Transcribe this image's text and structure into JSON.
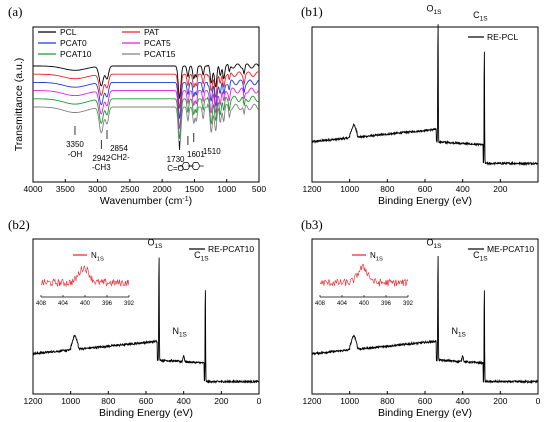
{
  "figure": {
    "chart_data": [
      {
        "panel_label": "(a)",
        "type": "line",
        "xlabel": "Wavenumber (cm",
        "xlabel_sup": "-1",
        "xlabel_end": ")",
        "ylabel": "Transmittance (a.u.)",
        "xlim": [
          4000,
          500
        ],
        "xticks": [
          "4000",
          "3500",
          "3000",
          "2500",
          "2000",
          "1500",
          "1000",
          "500"
        ],
        "legend_position": "top-left",
        "legend_columns": 2,
        "series": [
          {
            "name": "PCL",
            "color": "#000000",
            "offset": 0
          },
          {
            "name": "PAT",
            "color": "#e8202a",
            "offset": 1
          },
          {
            "name": "PCAT0",
            "color": "#1f3bd6",
            "offset": 2
          },
          {
            "name": "PCAT5",
            "color": "#e020d8",
            "offset": 3
          },
          {
            "name": "PCAT10",
            "color": "#1a9a2a",
            "offset": 4
          },
          {
            "name": "PCAT15",
            "color": "#808080",
            "offset": 5
          }
        ],
        "peaks": [
          {
            "x": 3350,
            "depth": 0.12,
            "width": 250
          },
          {
            "x": 2942,
            "depth": 0.55,
            "width": 45
          },
          {
            "x": 2854,
            "depth": 0.35,
            "width": 35
          },
          {
            "x": 1730,
            "depth": 0.9,
            "width": 28
          },
          {
            "x": 1601,
            "depth": 0.3,
            "width": 20
          },
          {
            "x": 1510,
            "depth": 0.35,
            "width": 22
          },
          {
            "x": 1470,
            "depth": 0.3,
            "width": 18
          },
          {
            "x": 1365,
            "depth": 0.25,
            "width": 18
          },
          {
            "x": 1240,
            "depth": 0.5,
            "width": 25
          },
          {
            "x": 1170,
            "depth": 0.55,
            "width": 25
          },
          {
            "x": 1100,
            "depth": 0.3,
            "width": 20
          },
          {
            "x": 1045,
            "depth": 0.3,
            "width": 18
          },
          {
            "x": 960,
            "depth": 0.2,
            "width": 15
          },
          {
            "x": 730,
            "depth": 0.2,
            "width": 15
          }
        ],
        "annotations": [
          {
            "x": 3350,
            "lines": [
              "3350",
              "-OH"
            ]
          },
          {
            "x": 2942,
            "lines": [
              "2942",
              "-CH3"
            ]
          },
          {
            "x": 2854,
            "lines": [
              "2854",
              "-CH2-"
            ]
          },
          {
            "x": 1730,
            "lines": [
              "1730",
              "C=O"
            ]
          },
          {
            "x": 1601,
            "lines": [
              "1601"
            ]
          },
          {
            "x": 1510,
            "lines": [
              "1510"
            ]
          }
        ]
      },
      {
        "panel_label": "(b1)",
        "type": "line",
        "xlabel": "Binding Energy (eV)",
        "xlim": [
          1200,
          0
        ],
        "xticks": [
          "1200",
          "1000",
          "800",
          "600",
          "400",
          "200"
        ],
        "legend": "RE-PCL",
        "legend_position": "top-right",
        "baseline_low_be": 0.12,
        "baseline_high_be": 0.34,
        "peaks": [
          {
            "x": 978,
            "height": 0.06,
            "width": 14
          },
          {
            "x": 531,
            "height": 0.82,
            "width": 1.8,
            "label": "O",
            "sub": "1S"
          },
          {
            "x": 285,
            "height": 0.78,
            "width": 1.8,
            "label": "C",
            "sub": "1S"
          }
        ]
      },
      {
        "panel_label": "(b2)",
        "type": "line",
        "xlabel": "Binding Energy (eV)",
        "xlim": [
          1200,
          0
        ],
        "xticks": [
          "1200",
          "1000",
          "800",
          "600",
          "400",
          "200",
          "0"
        ],
        "legend": "RE-PCAT10",
        "legend_position": "top-right",
        "baseline_low_be": 0.08,
        "baseline_high_be": 0.34,
        "peaks": [
          {
            "x": 978,
            "height": 0.07,
            "width": 14
          },
          {
            "x": 531,
            "height": 0.72,
            "width": 1.8,
            "label": "O",
            "sub": "1S"
          },
          {
            "x": 400,
            "height": 0.04,
            "width": 5,
            "label": "N",
            "sub": "1S"
          },
          {
            "x": 285,
            "height": 0.64,
            "width": 1.8,
            "label": "C",
            "sub": "1S"
          }
        ],
        "inset": {
          "label": "N",
          "sub": "1S",
          "xlim": [
            408,
            392
          ],
          "xticks": [
            "408",
            "404",
            "400",
            "396",
            "392"
          ],
          "peak_x": 400.2
        }
      },
      {
        "panel_label": "(b3)",
        "type": "line",
        "xlabel": "Binding Energy (eV)",
        "xlim": [
          1200,
          0
        ],
        "xticks": [
          "1200",
          "1000",
          "800",
          "600",
          "400",
          "200",
          "0"
        ],
        "legend": "ME-PCAT10",
        "legend_position": "top-right",
        "baseline_low_be": 0.08,
        "baseline_high_be": 0.34,
        "peaks": [
          {
            "x": 978,
            "height": 0.07,
            "width": 14
          },
          {
            "x": 531,
            "height": 0.72,
            "width": 1.8,
            "label": "O",
            "sub": "1S"
          },
          {
            "x": 400,
            "height": 0.04,
            "width": 5,
            "label": "N",
            "sub": "1S"
          },
          {
            "x": 285,
            "height": 0.64,
            "width": 1.8,
            "label": "C",
            "sub": "1S"
          }
        ],
        "inset": {
          "label": "N",
          "sub": "1S",
          "xlim": [
            408,
            392
          ],
          "xticks": [
            "408",
            "404",
            "400",
            "396",
            "392"
          ],
          "peak_x": 400.2
        }
      }
    ]
  }
}
